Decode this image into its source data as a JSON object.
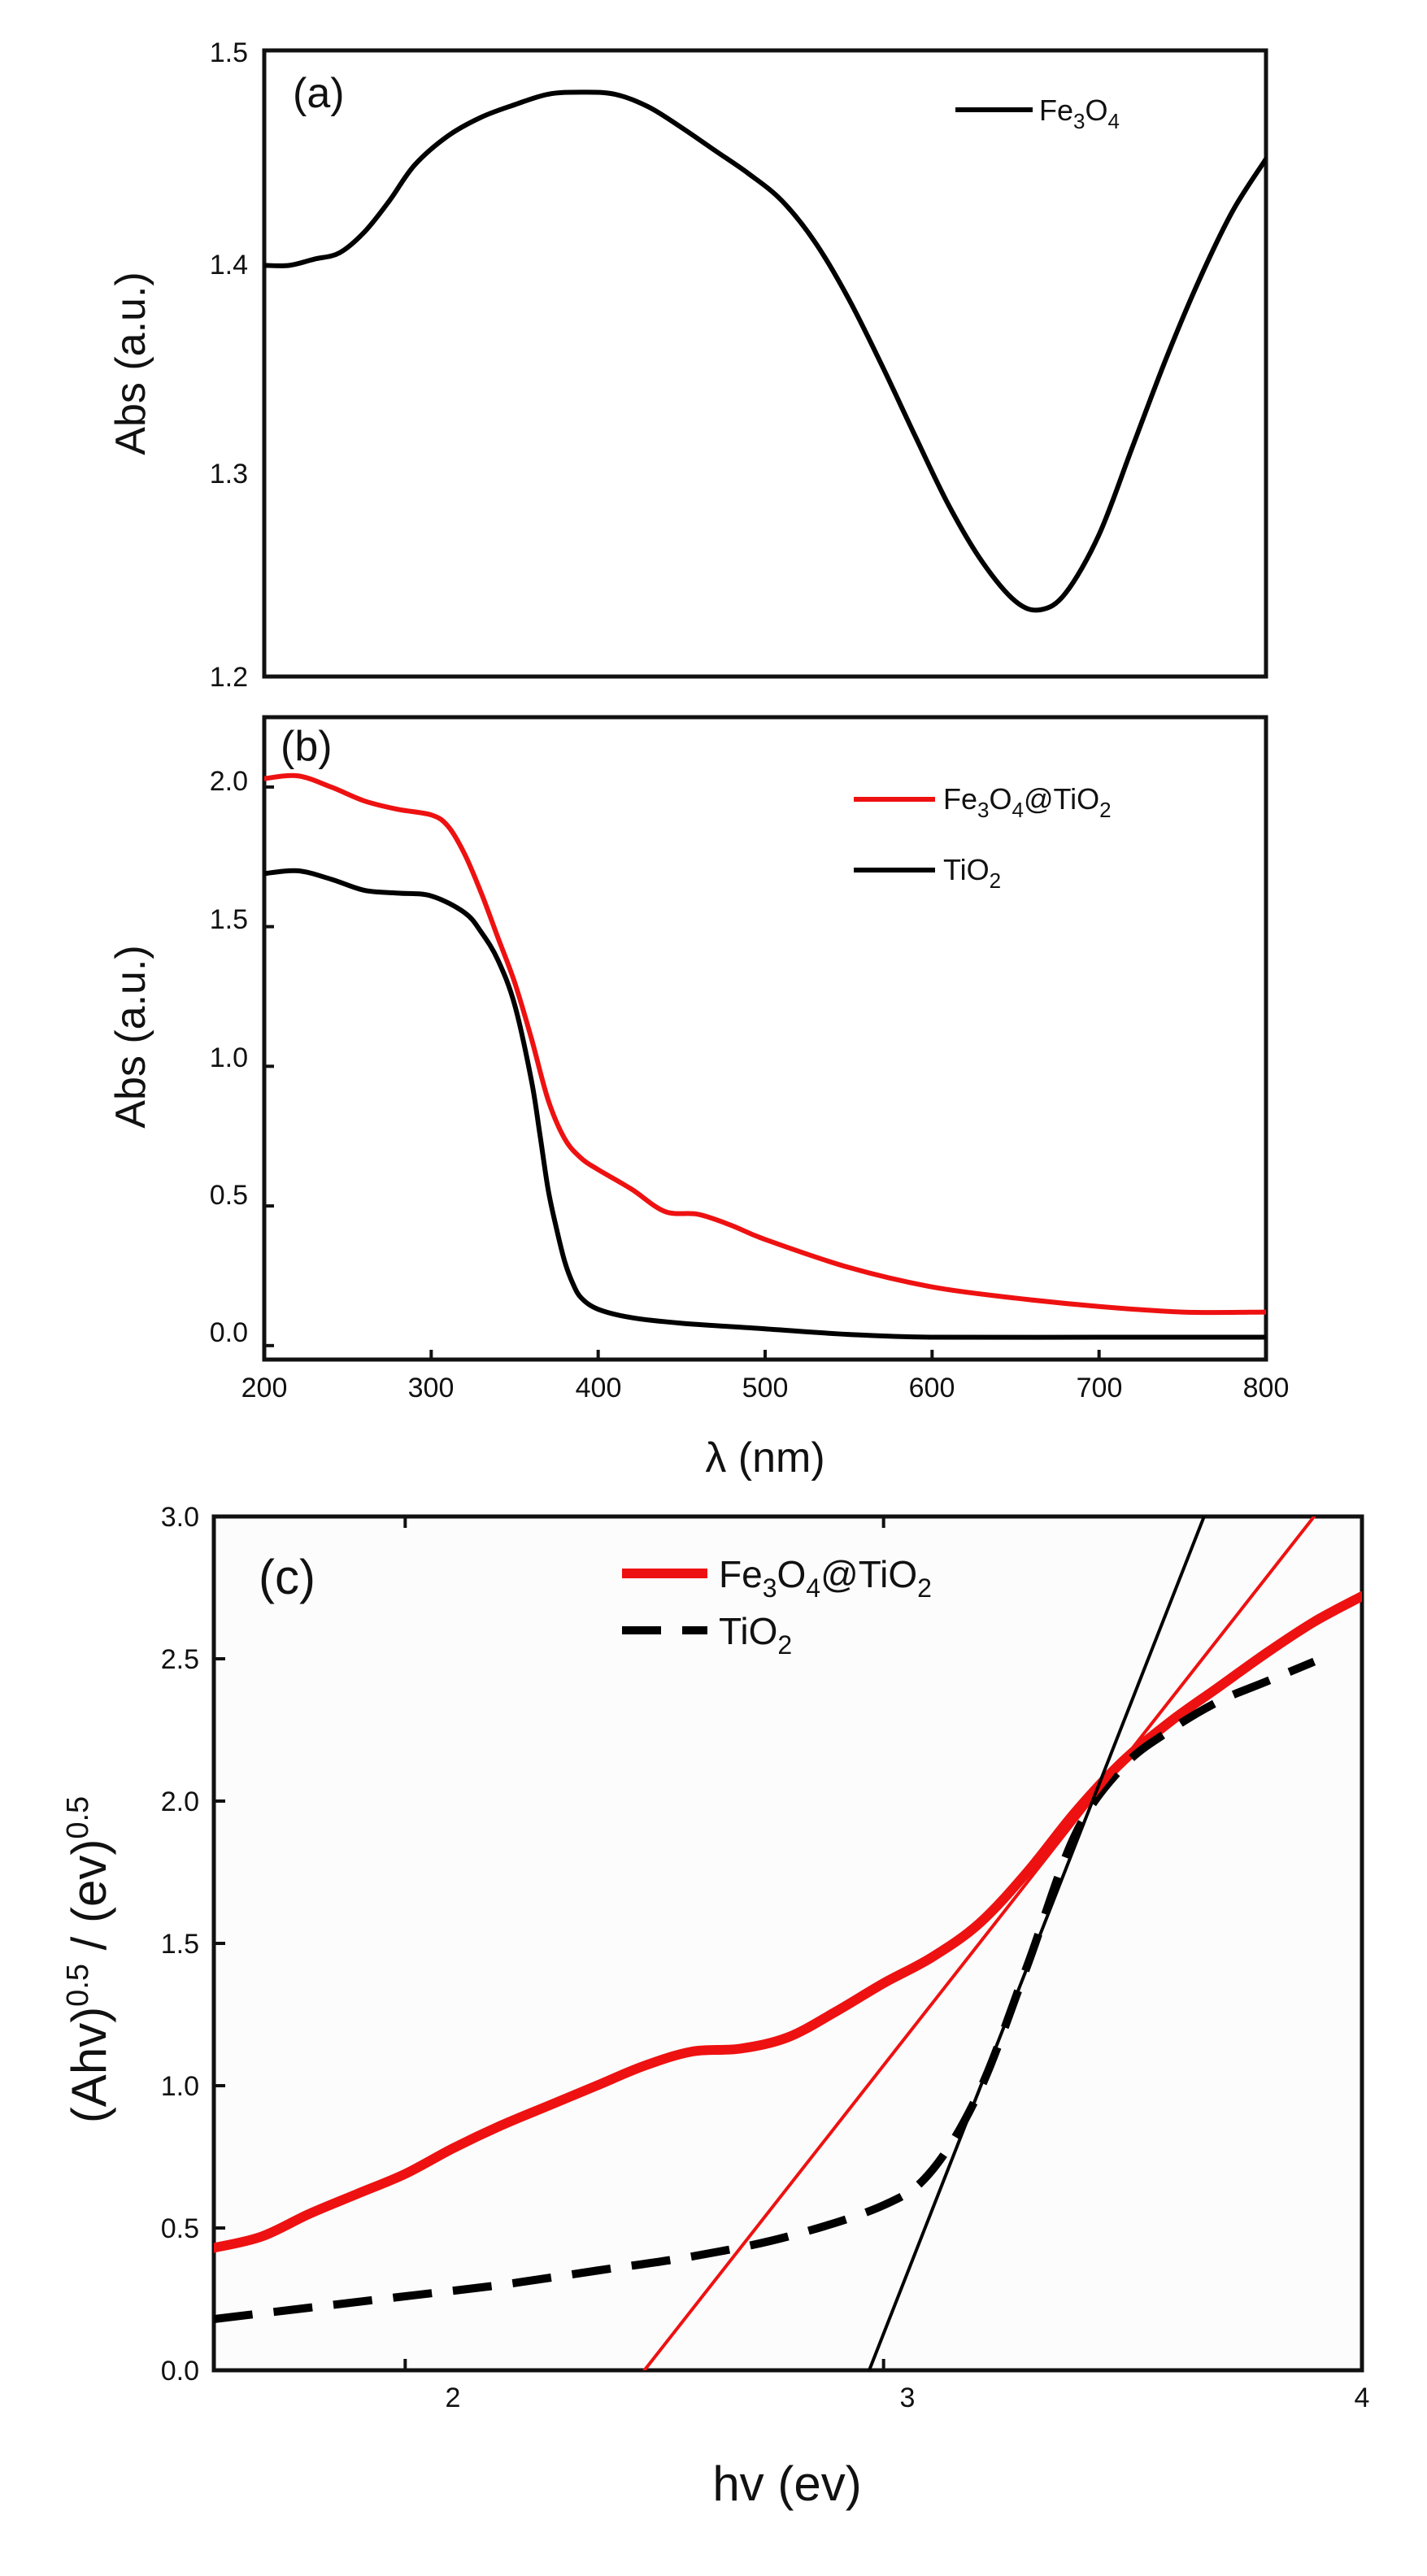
{
  "chart_data": [
    {
      "panel_label": "(a)",
      "type": "line",
      "ylabel": "Abs (a.u.)",
      "xlim": [
        200,
        800
      ],
      "ylim": [
        1.2,
        1.5
      ],
      "yticks": [
        "1.2",
        "1.3",
        "1.4",
        "1.5"
      ],
      "legend_position": "top-right",
      "series": [
        {
          "name": "Fe3O4",
          "legend_label": {
            "main": "Fe",
            "sub1": "3",
            "mid": "O",
            "sub2": "4"
          },
          "color": "#000000",
          "x": [
            200,
            215,
            230,
            245,
            260,
            275,
            290,
            310,
            330,
            350,
            370,
            390,
            410,
            430,
            450,
            470,
            490,
            510,
            530,
            550,
            570,
            590,
            610,
            630,
            650,
            665,
            680,
            700,
            720,
            740,
            760,
            780,
            800
          ],
          "y": [
            1.397,
            1.397,
            1.4,
            1.403,
            1.413,
            1.428,
            1.445,
            1.459,
            1.468,
            1.474,
            1.479,
            1.48,
            1.479,
            1.473,
            1.463,
            1.452,
            1.441,
            1.428,
            1.408,
            1.381,
            1.349,
            1.315,
            1.282,
            1.255,
            1.236,
            1.232,
            1.24,
            1.268,
            1.31,
            1.352,
            1.39,
            1.423,
            1.448
          ]
        }
      ]
    },
    {
      "panel_label": "(b)",
      "type": "line",
      "ylabel": "Abs (a.u.)",
      "xlabel": "λ (nm)",
      "xlim": [
        200,
        800
      ],
      "ylim": [
        -0.05,
        2.25
      ],
      "xticks": [
        "200",
        "300",
        "400",
        "500",
        "600",
        "700",
        "800"
      ],
      "yticks": [
        "0.0",
        "0.5",
        "1.0",
        "1.5",
        "2.0"
      ],
      "legend_position": "top-right",
      "series": [
        {
          "name": "Fe3O4@TiO2",
          "legend_label": {
            "main": "Fe",
            "sub1": "3",
            "mid": "O",
            "sub2": "4",
            "tail": "@TiO",
            "sub3": "2"
          },
          "color": "#ee1111",
          "x": [
            200,
            220,
            240,
            260,
            280,
            300,
            310,
            320,
            330,
            340,
            350,
            360,
            370,
            380,
            390,
            400,
            420,
            440,
            460,
            480,
            500,
            550,
            600,
            650,
            700,
            750,
            800
          ],
          "y": [
            2.03,
            2.04,
            2.0,
            1.95,
            1.92,
            1.9,
            1.86,
            1.76,
            1.62,
            1.46,
            1.3,
            1.1,
            0.88,
            0.74,
            0.67,
            0.63,
            0.56,
            0.48,
            0.47,
            0.43,
            0.38,
            0.28,
            0.21,
            0.17,
            0.14,
            0.12,
            0.12
          ]
        },
        {
          "name": "TiO2",
          "legend_label": {
            "main": "TiO",
            "sub1": "2"
          },
          "color": "#000000",
          "x": [
            200,
            220,
            240,
            260,
            280,
            300,
            320,
            330,
            340,
            350,
            360,
            365,
            370,
            375,
            380,
            385,
            390,
            400,
            420,
            450,
            500,
            550,
            600,
            700,
            800
          ],
          "y": [
            1.69,
            1.7,
            1.67,
            1.63,
            1.62,
            1.61,
            1.55,
            1.48,
            1.38,
            1.22,
            0.95,
            0.76,
            0.56,
            0.42,
            0.3,
            0.22,
            0.17,
            0.13,
            0.1,
            0.08,
            0.06,
            0.04,
            0.03,
            0.03,
            0.03
          ]
        }
      ]
    },
    {
      "panel_label": "(c)",
      "type": "line",
      "ylabel": {
        "main": "(Ahv)",
        "sup1": "0.5",
        "mid": " / (ev)",
        "sup2": "0.5"
      },
      "xlabel": "hv (ev)",
      "xlim": [
        1.6,
        4.0
      ],
      "ylim": [
        0.0,
        3.0
      ],
      "xticks": [
        "2",
        "3",
        "4"
      ],
      "yticks": [
        "0.0",
        "0.5",
        "1.0",
        "1.5",
        "2.0",
        "2.5",
        "3.0"
      ],
      "legend_position": "top-center",
      "series": [
        {
          "name": "Fe3O4@TiO2",
          "legend_label": {
            "main": "Fe",
            "sub1": "3",
            "mid": "O",
            "sub2": "4",
            "tail": "@TiO",
            "sub3": "2"
          },
          "color": "#ee1111",
          "style": "solid-thick",
          "x": [
            1.6,
            1.7,
            1.8,
            1.9,
            2.0,
            2.1,
            2.2,
            2.3,
            2.4,
            2.5,
            2.6,
            2.7,
            2.8,
            2.9,
            3.0,
            3.1,
            3.2,
            3.3,
            3.4,
            3.5,
            3.6,
            3.7,
            3.8,
            3.9,
            4.0
          ],
          "y": [
            0.43,
            0.47,
            0.55,
            0.62,
            0.69,
            0.78,
            0.86,
            0.93,
            1.0,
            1.07,
            1.12,
            1.13,
            1.17,
            1.26,
            1.36,
            1.45,
            1.57,
            1.75,
            1.96,
            2.14,
            2.28,
            2.4,
            2.52,
            2.63,
            2.72
          ]
        },
        {
          "name": "TiO2",
          "legend_label": {
            "main": "TiO",
            "sub1": "2"
          },
          "color": "#000000",
          "style": "dashed",
          "x": [
            1.6,
            1.8,
            2.0,
            2.2,
            2.4,
            2.6,
            2.8,
            3.0,
            3.1,
            3.2,
            3.3,
            3.4,
            3.5,
            3.6,
            3.7,
            3.8,
            3.9
          ],
          "y": [
            0.18,
            0.22,
            0.26,
            0.3,
            0.35,
            0.4,
            0.47,
            0.58,
            0.7,
            0.98,
            1.42,
            1.88,
            2.12,
            2.25,
            2.35,
            2.42,
            2.49
          ]
        },
        {
          "name": "Fe3O4@TiO2 tangent",
          "color": "#ee1111",
          "style": "thin",
          "x": [
            2.5,
            3.9
          ],
          "y": [
            0.0,
            3.0
          ]
        },
        {
          "name": "TiO2 tangent",
          "color": "#000000",
          "style": "thin",
          "x": [
            2.97,
            3.67
          ],
          "y": [
            0.0,
            3.0
          ]
        }
      ]
    }
  ]
}
